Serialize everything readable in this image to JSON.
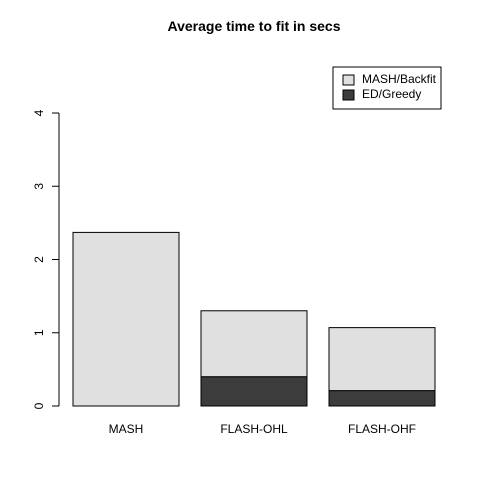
{
  "chart_data": {
    "type": "stacked-bar",
    "title": "Average time to fit in secs",
    "categories": [
      "MASH",
      "FLASH-OHL",
      "FLASH-OHF"
    ],
    "series": [
      {
        "name": "MASH/Backfit",
        "color": "#e0e0e0",
        "values": [
          2.37,
          0.9,
          0.86
        ]
      },
      {
        "name": "ED/Greedy",
        "color": "#3c3c3c",
        "values": [
          0,
          0.4,
          0.21
        ]
      }
    ],
    "ylim": [
      0,
      4
    ],
    "yticks": [
      0,
      1,
      2,
      3,
      4
    ],
    "legend": "top-right"
  }
}
